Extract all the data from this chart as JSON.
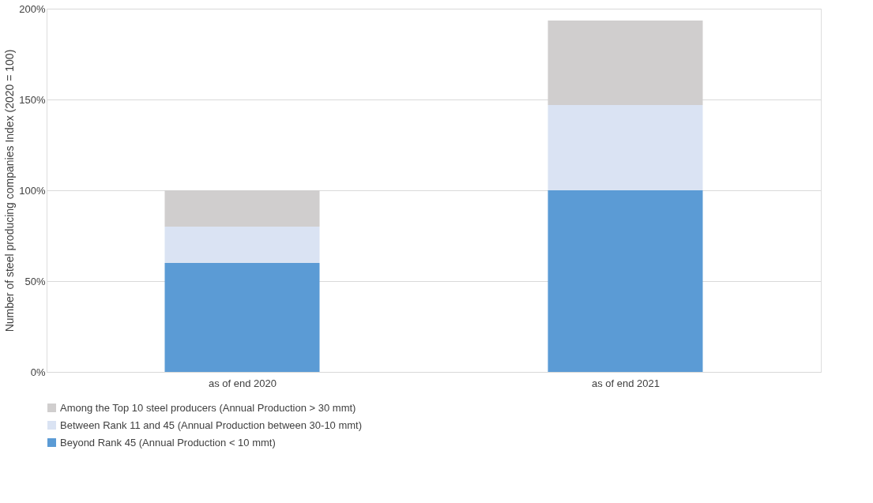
{
  "chart_data": {
    "type": "bar",
    "stacked": true,
    "ylabel": "Number of steel producing companies Index (2020 = 100)",
    "categories": [
      "as of end 2020",
      "as of end 2021"
    ],
    "series": [
      {
        "name": "Beyond Rank 45 (Annual Production < 10 mmt)",
        "color": "#5b9bd5",
        "values": [
          60,
          100
        ]
      },
      {
        "name": "Between Rank 11 and 45 (Annual Production between 30-10 mmt)",
        "color": "#dae3f3",
        "values": [
          20,
          47
        ]
      },
      {
        "name": "Among the Top 10 steel producers (Annual Production > 30 mmt)",
        "color": "#d0cece",
        "values": [
          20,
          46.5
        ]
      }
    ],
    "ylim": [
      0,
      200
    ],
    "yticks": [
      {
        "value": 0,
        "label": "0%"
      },
      {
        "value": 50,
        "label": "50%"
      },
      {
        "value": 100,
        "label": "100%"
      },
      {
        "value": 150,
        "label": "150%"
      },
      {
        "value": 200,
        "label": "200%"
      }
    ],
    "grid": "y",
    "legend": "bottom"
  }
}
